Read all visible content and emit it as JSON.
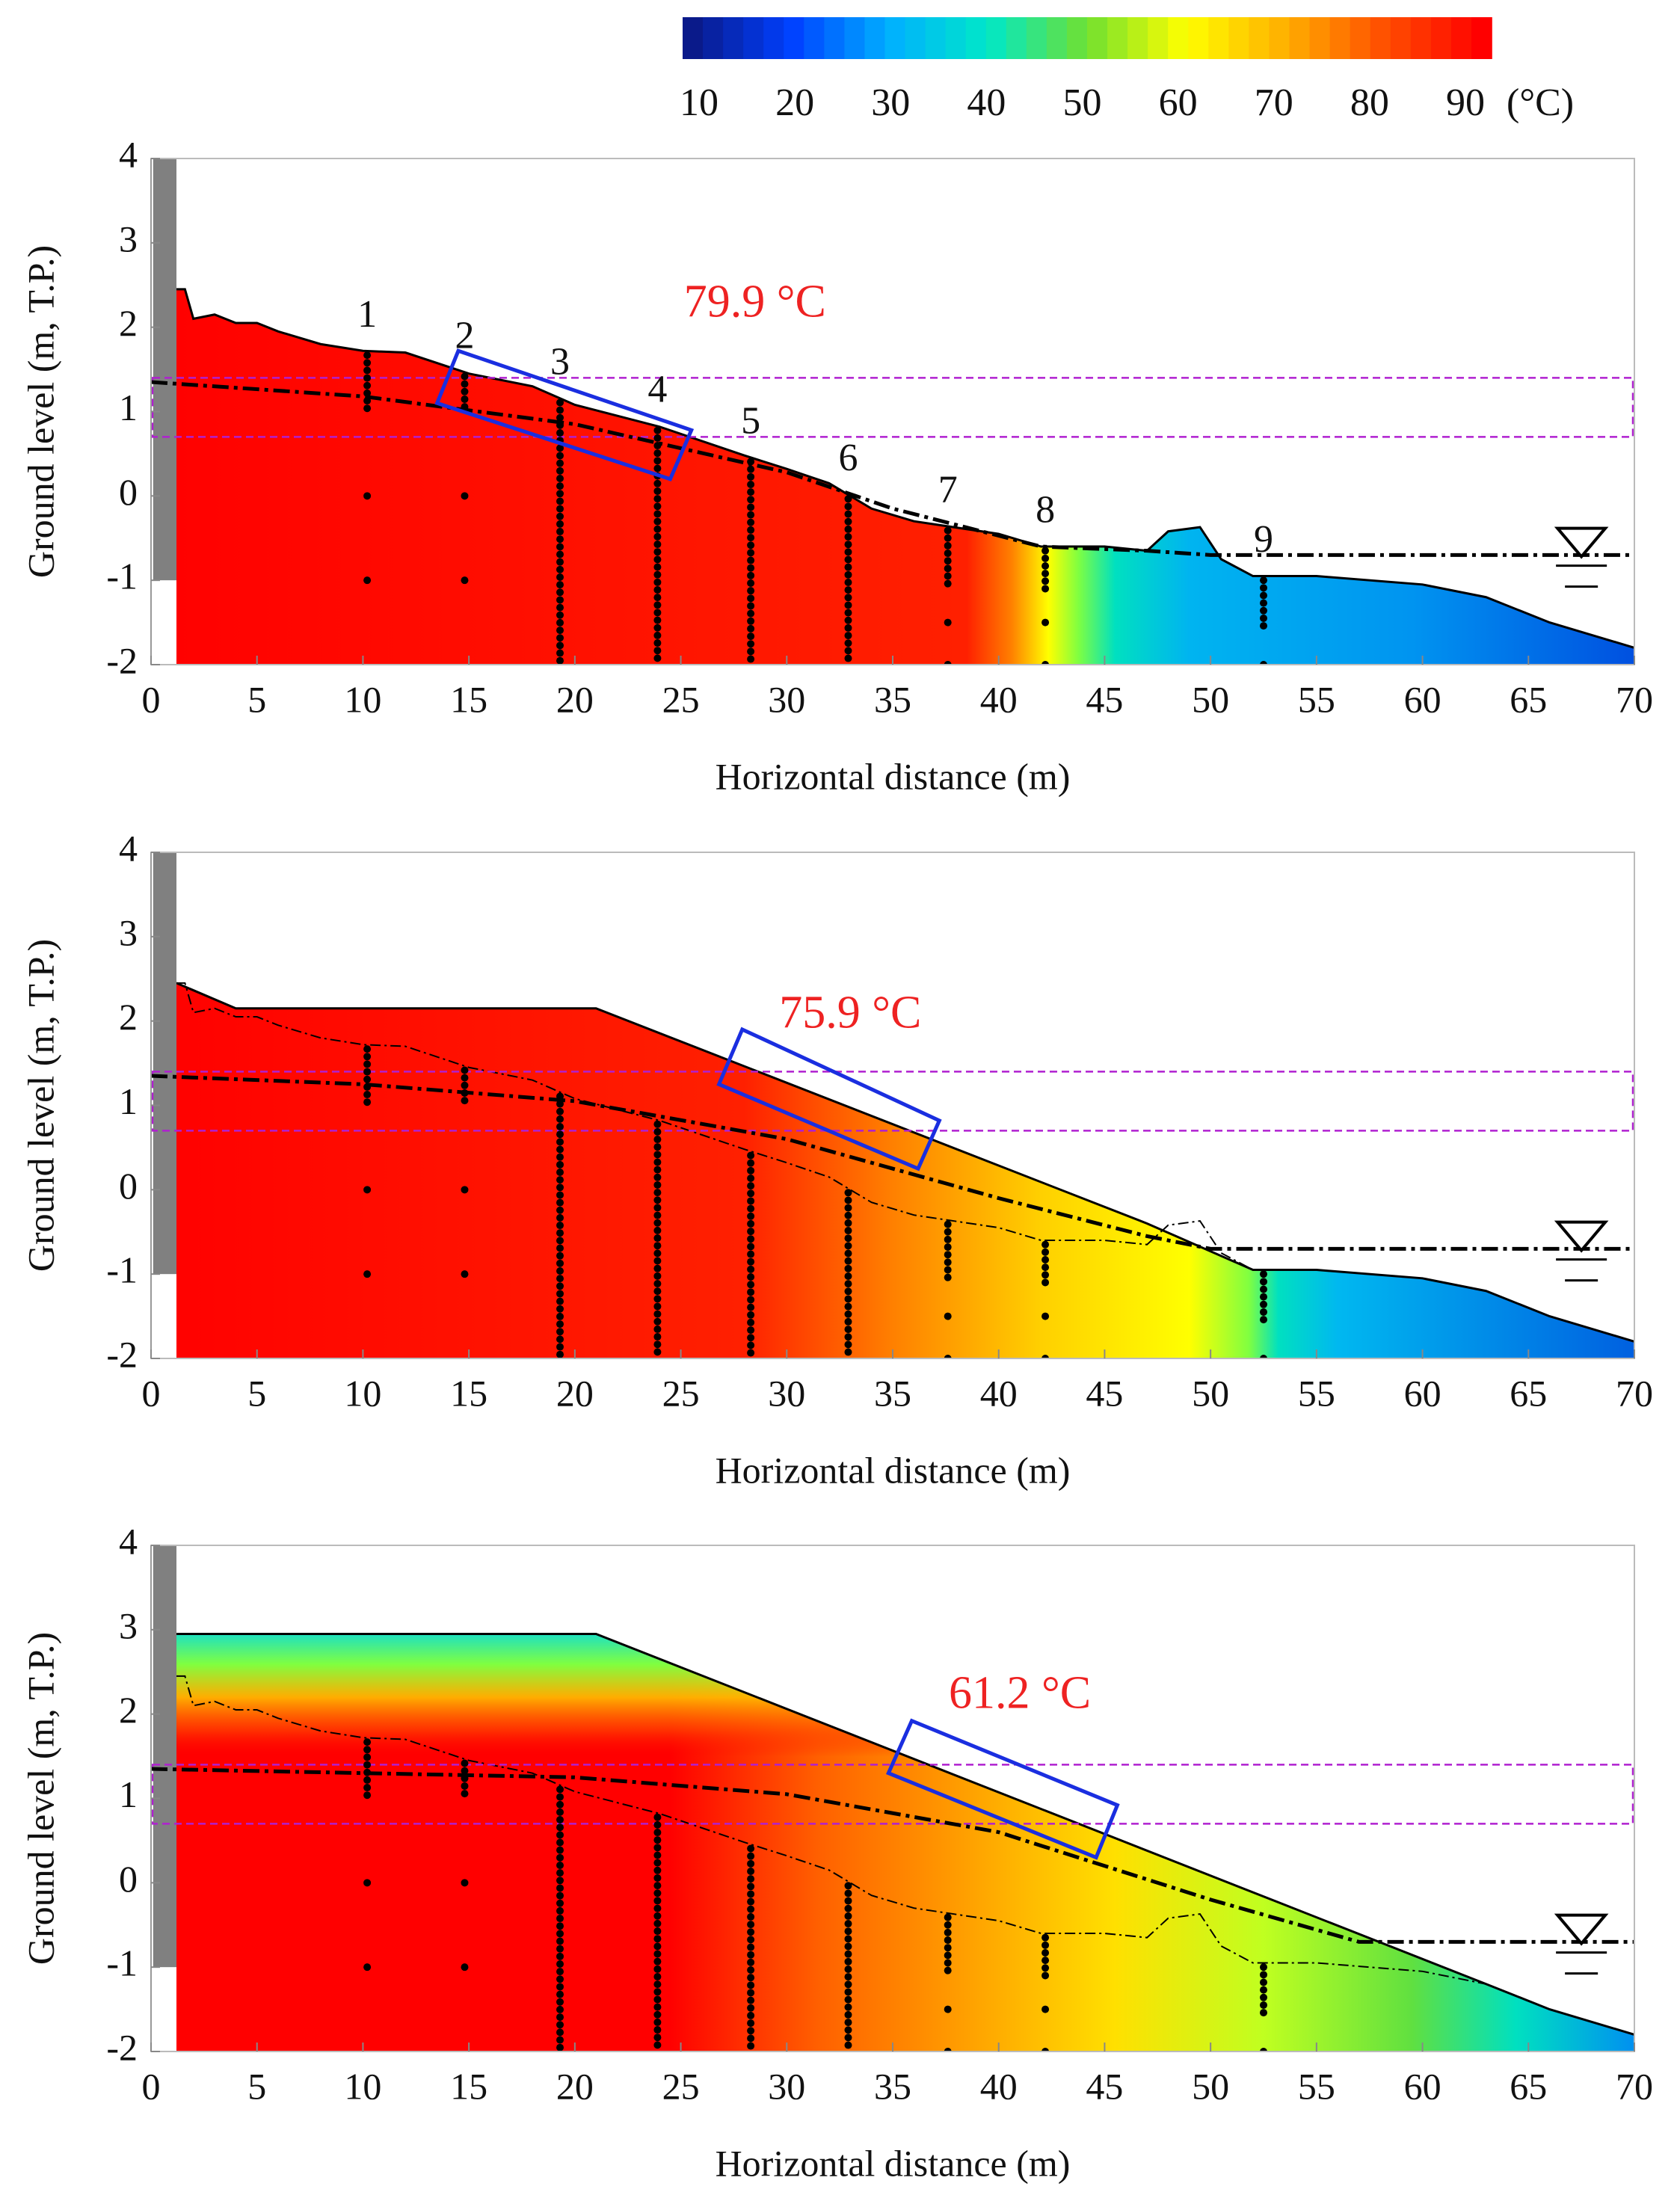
{
  "colorbar": {
    "ticks": [
      10,
      20,
      30,
      40,
      50,
      60,
      70,
      80,
      90
    ],
    "unit": "(°C)",
    "colors": [
      "#0a1a8a",
      "#0040ff",
      "#00b0ff",
      "#00e8c8",
      "#70e030",
      "#ffff00",
      "#ffb000",
      "#ff5000",
      "#ff0000"
    ]
  },
  "chart_data": [
    {
      "type": "contour",
      "x_label": "Horizontal distance (m)",
      "y_label": "Ground level (m, T.P.)",
      "xlim": [
        0,
        70
      ],
      "ylim": [
        -2,
        4
      ],
      "xticks": [
        0,
        5,
        10,
        15,
        20,
        25,
        30,
        35,
        40,
        45,
        50,
        55,
        60,
        65,
        70
      ],
      "yticks": [
        -2,
        -1,
        0,
        1,
        2,
        3,
        4
      ],
      "annotation": "79.9 °C",
      "borehole_labels": [
        "1",
        "2",
        "3",
        "4",
        "5",
        "6",
        "7",
        "8",
        "9"
      ],
      "boreholes": {
        "x": [
          10.2,
          14.8,
          19.3,
          23.9,
          28.3,
          32.9,
          37.6,
          42.2,
          52.5
        ],
        "dense_to": [
          1.0,
          1.0,
          -2,
          -2,
          -2,
          -2,
          -1.1,
          -1.1,
          -1.6
        ]
      },
      "surface": {
        "x": [
          1.2,
          1.6,
          2,
          3,
          4,
          5,
          6,
          8,
          10,
          12,
          15,
          18,
          20,
          24,
          28,
          30,
          32,
          34,
          36,
          40,
          42,
          45,
          47,
          48,
          49.5,
          50.5,
          52,
          55,
          60,
          63,
          66,
          70
        ],
        "y": [
          2.45,
          2.45,
          2.1,
          2.15,
          2.05,
          2.05,
          1.95,
          1.8,
          1.72,
          1.7,
          1.45,
          1.3,
          1.08,
          0.82,
          0.48,
          0.32,
          0.15,
          -0.15,
          -0.3,
          -0.45,
          -0.6,
          -0.6,
          -0.65,
          -0.42,
          -0.37,
          -0.75,
          -0.95,
          -0.95,
          -1.05,
          -1.2,
          -1.5,
          -1.8
        ]
      },
      "groundwater": {
        "x": [
          0,
          10,
          20,
          30,
          35,
          42,
          47,
          50,
          70
        ],
        "y": [
          1.35,
          1.18,
          0.85,
          0.28,
          -0.15,
          -0.6,
          -0.65,
          -0.7,
          -0.7
        ]
      }
    },
    {
      "type": "contour",
      "x_label": "Horizontal distance (m)",
      "y_label": "Ground level (m, T.P.)",
      "xlim": [
        0,
        70
      ],
      "ylim": [
        -2,
        4
      ],
      "xticks": [
        0,
        5,
        10,
        15,
        20,
        25,
        30,
        35,
        40,
        45,
        50,
        55,
        60,
        65,
        70
      ],
      "yticks": [
        -2,
        -1,
        0,
        1,
        2,
        3,
        4
      ],
      "annotation": "75.9 °C",
      "surface": {
        "x": [
          1.2,
          4,
          21,
          47,
          52,
          55,
          60,
          63,
          66,
          70
        ],
        "y": [
          2.45,
          2.15,
          2.15,
          -0.4,
          -0.95,
          -0.95,
          -1.05,
          -1.2,
          -1.5,
          -1.8
        ]
      },
      "groundwater": {
        "x": [
          0,
          10,
          20,
          30,
          40,
          47,
          50,
          70
        ],
        "y": [
          1.35,
          1.25,
          1.05,
          0.6,
          -0.1,
          -0.55,
          -0.7,
          -0.7
        ]
      }
    },
    {
      "type": "contour",
      "x_label": "Horizontal distance (m)",
      "y_label": "Ground level (m, T.P.)",
      "xlim": [
        0,
        70
      ],
      "ylim": [
        -2,
        4
      ],
      "xticks": [
        0,
        5,
        10,
        15,
        20,
        25,
        30,
        35,
        40,
        45,
        50,
        55,
        60,
        65,
        70
      ],
      "yticks": [
        -2,
        -1,
        0,
        1,
        2,
        3,
        4
      ],
      "annotation": "61.2 °C",
      "surface": {
        "x": [
          1.2,
          21,
          63,
          66,
          70
        ],
        "y": [
          2.95,
          2.95,
          -1.2,
          -1.5,
          -1.8
        ]
      },
      "groundwater": {
        "x": [
          0,
          10,
          20,
          30,
          40,
          50,
          57,
          70
        ],
        "y": [
          1.35,
          1.3,
          1.25,
          1.05,
          0.6,
          -0.2,
          -0.7,
          -0.7
        ]
      }
    }
  ]
}
